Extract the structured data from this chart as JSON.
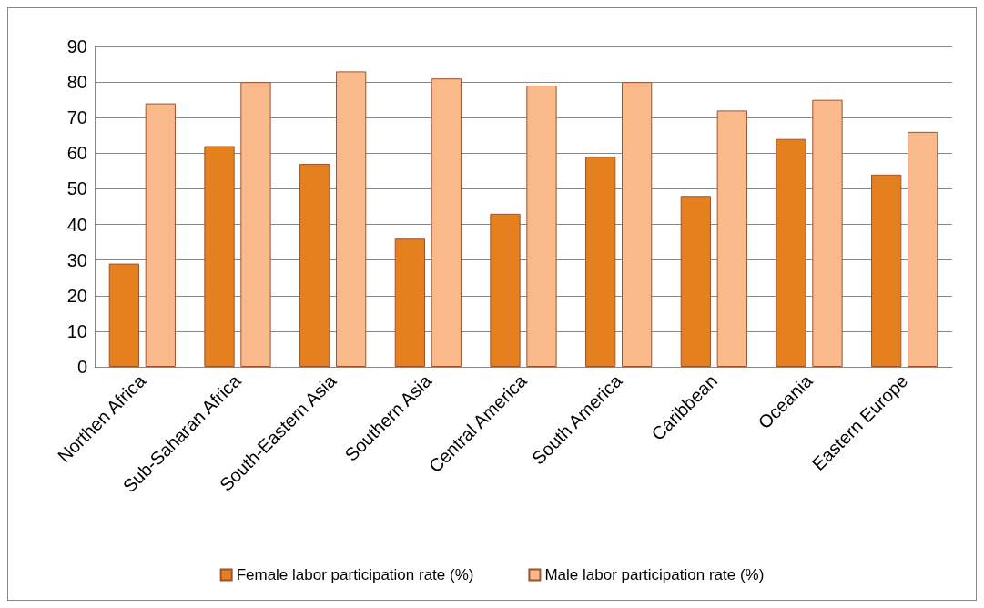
{
  "chart_data": {
    "type": "bar",
    "categories": [
      "Northen Africa",
      "Sub-Saharan Africa",
      "South-Eastern Asia",
      "Southern Asia",
      "Central America",
      "South America",
      "Caribbean",
      "Oceania",
      "Eastern Europe"
    ],
    "series": [
      {
        "name": "Female labor participation rate (%)",
        "color": "#e5801f",
        "values": [
          29,
          62,
          57,
          36,
          43,
          59,
          48,
          64,
          54
        ]
      },
      {
        "name": "Male labor participation rate (%)",
        "color": "#f9b98a",
        "values": [
          74,
          80,
          83,
          81,
          79,
          80,
          72,
          75,
          66
        ]
      }
    ],
    "ylim": [
      0,
      90
    ],
    "yticks": [
      0,
      10,
      20,
      30,
      40,
      50,
      60,
      70,
      80,
      90
    ],
    "grid": "y",
    "legend": "bottom"
  }
}
